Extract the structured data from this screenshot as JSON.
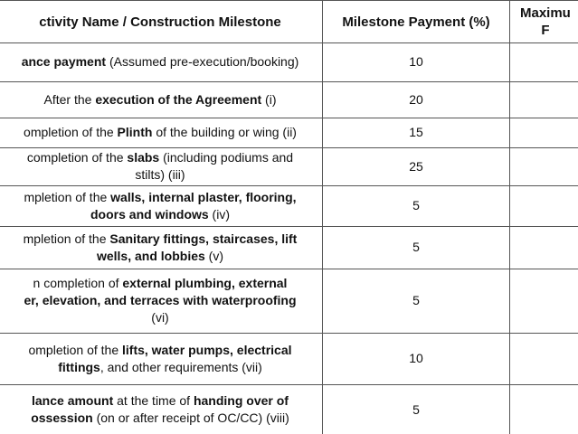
{
  "table": {
    "header": [
      [
        [
          {
            "text": "ctivity Name / Construction Milestone",
            "bold": true
          }
        ]
      ],
      [
        [
          {
            "text": "Milestone Payment (%)",
            "bold": true
          }
        ]
      ],
      [
        [
          {
            "text": "Maximu",
            "bold": true
          }
        ],
        [
          {
            "text": "F",
            "bold": true
          }
        ]
      ]
    ],
    "rows": [
      {
        "milestone": [
          [
            {
              "text": "ance payment",
              "bold": true
            },
            {
              "text": " (Assumed pre-execution/booking)",
              "bold": false
            }
          ]
        ],
        "payment": 10
      },
      {
        "milestone": [
          [
            {
              "text": "After the ",
              "bold": false
            },
            {
              "text": "execution of the Agreement",
              "bold": true
            },
            {
              "text": " (i)",
              "bold": false
            }
          ]
        ],
        "payment": 20
      },
      {
        "milestone": [
          [
            {
              "text": "ompletion of the ",
              "bold": false
            },
            {
              "text": "Plinth",
              "bold": true
            },
            {
              "text": " of the building or wing  (ii)",
              "bold": false
            }
          ]
        ],
        "payment": 15
      },
      {
        "milestone": [
          [
            {
              "text": "completion of the ",
              "bold": false
            },
            {
              "text": "slabs",
              "bold": true
            },
            {
              "text": " (including podiums and",
              "bold": false
            }
          ],
          [
            {
              "text": "stilts)  (iii)",
              "bold": false
            }
          ]
        ],
        "payment": 25
      },
      {
        "milestone": [
          [
            {
              "text": "mpletion of the ",
              "bold": false
            },
            {
              "text": "walls, internal plaster, flooring,",
              "bold": true
            }
          ],
          [
            {
              "text": "doors and windows",
              "bold": true
            },
            {
              "text": " (iv)",
              "bold": false
            }
          ]
        ],
        "payment": 5
      },
      {
        "milestone": [
          [
            {
              "text": "mpletion of the ",
              "bold": false
            },
            {
              "text": "Sanitary fittings, staircases, lift",
              "bold": true
            }
          ],
          [
            {
              "text": "wells, and lobbies",
              "bold": true
            },
            {
              "text": " (v)",
              "bold": false
            }
          ]
        ],
        "payment": 5
      },
      {
        "milestone": [
          [
            {
              "text": "n completion of ",
              "bold": false
            },
            {
              "text": "external plumbing, external",
              "bold": true
            }
          ],
          [
            {
              "text": "er, elevation, and terraces with waterproofing",
              "bold": true
            }
          ],
          [
            {
              "text": "(vi)",
              "bold": false
            }
          ]
        ],
        "payment": 5
      },
      {
        "milestone": [
          [
            {
              "text": "ompletion of the ",
              "bold": false
            },
            {
              "text": "lifts, water pumps, electrical",
              "bold": true
            }
          ],
          [
            {
              "text": "fittings",
              "bold": true
            },
            {
              "text": ", and other requirements (vii)",
              "bold": false
            }
          ]
        ],
        "payment": 10
      },
      {
        "milestone": [
          [
            {
              "text": "lance amount",
              "bold": true
            },
            {
              "text": " at the time of ",
              "bold": false
            },
            {
              "text": "handing over of",
              "bold": true
            }
          ],
          [
            {
              "text": "ossession",
              "bold": true
            },
            {
              "text": " (on or after receipt of OC/CC) (viii)",
              "bold": false
            }
          ]
        ],
        "payment": 5
      }
    ]
  }
}
